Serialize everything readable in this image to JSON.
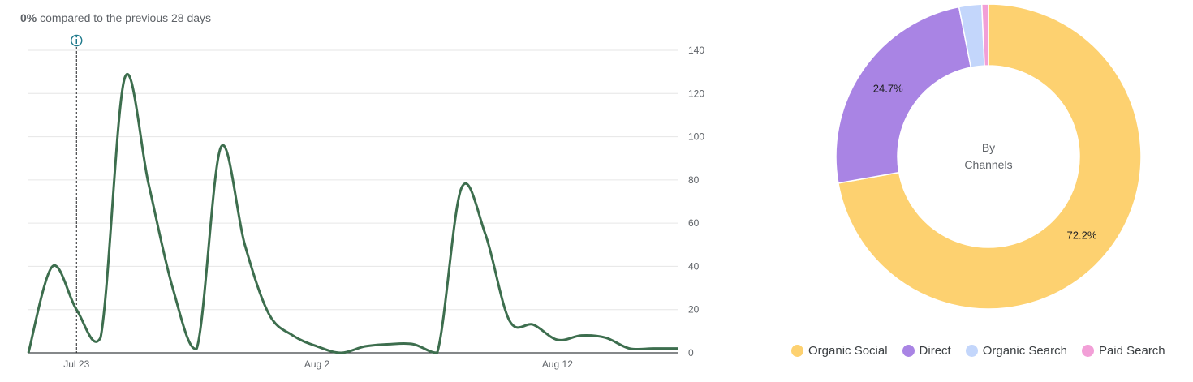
{
  "summary": {
    "percent": "0%",
    "text": "compared to the previous 28 days"
  },
  "info_icon": "info-icon",
  "colors": {
    "line": "#3d6e4e",
    "grid": "#e6e6e6",
    "axis": "#3c4043",
    "marker": "#1f7a8c"
  },
  "chart_data": [
    {
      "type": "line",
      "x": [
        "2024-07-21",
        "2024-07-22",
        "2024-07-23",
        "2024-07-24",
        "2024-07-25",
        "2024-07-26",
        "2024-07-27",
        "2024-07-28",
        "2024-07-29",
        "2024-07-30",
        "2024-07-31",
        "2024-08-01",
        "2024-08-02",
        "2024-08-03",
        "2024-08-04",
        "2024-08-05",
        "2024-08-06",
        "2024-08-07",
        "2024-08-08",
        "2024-08-09",
        "2024-08-10",
        "2024-08-11",
        "2024-08-12",
        "2024-08-13",
        "2024-08-14",
        "2024-08-15",
        "2024-08-16",
        "2024-08-17"
      ],
      "x_tick_labels": [
        "Jul 23",
        "Aug 2",
        "Aug 12"
      ],
      "x_tick_dates": [
        "2024-07-23",
        "2024-08-02",
        "2024-08-12"
      ],
      "series": [
        {
          "values": [
            0,
            40,
            20,
            7,
            127,
            78,
            30,
            2,
            95,
            50,
            18,
            8,
            3,
            0,
            3,
            4,
            4,
            0,
            76,
            55,
            15,
            13,
            6,
            8,
            7,
            2,
            2,
            2
          ]
        }
      ],
      "ylim": [
        0,
        140
      ],
      "y_ticks": [
        0,
        20,
        40,
        60,
        80,
        100,
        120,
        140
      ],
      "y_axis_position": "right",
      "grid": true,
      "marker_date": "2024-07-23"
    },
    {
      "type": "pie",
      "center_label": [
        "By",
        "Channels"
      ],
      "slices": [
        {
          "name": "Organic Social",
          "value": 72.2,
          "color": "#fdd170",
          "label": "72.2%"
        },
        {
          "name": "Direct",
          "value": 24.7,
          "color": "#a984e4",
          "label": "24.7%"
        },
        {
          "name": "Organic Search",
          "value": 2.4,
          "color": "#c3d6fb",
          "label": ""
        },
        {
          "name": "Paid Search",
          "value": 0.7,
          "color": "#f29fd7",
          "label": ""
        }
      ],
      "legend": "bottom"
    }
  ]
}
